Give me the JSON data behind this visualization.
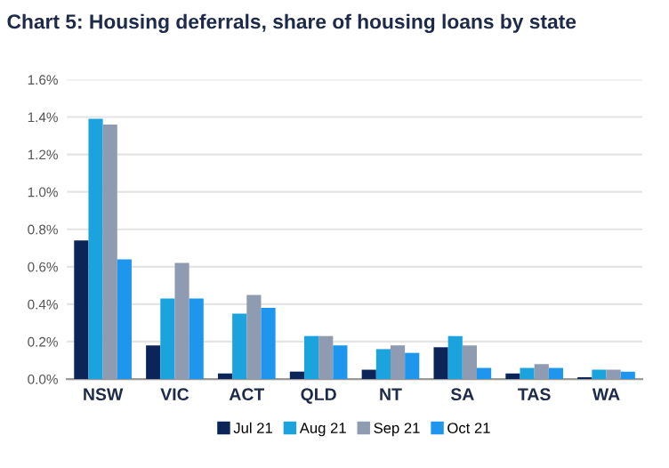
{
  "chart_data": {
    "type": "bar",
    "title": "Chart 5: Housing deferrals, share of housing loans by state",
    "categories": [
      "NSW",
      "VIC",
      "ACT",
      "QLD",
      "NT",
      "SA",
      "TAS",
      "WA"
    ],
    "series": [
      {
        "name": "Jul 21",
        "color": "#0b2559",
        "values": [
          0.74,
          0.18,
          0.03,
          0.04,
          0.05,
          0.17,
          0.03,
          0.01
        ]
      },
      {
        "name": "Aug 21",
        "color": "#1aa3dc",
        "values": [
          1.39,
          0.43,
          0.35,
          0.23,
          0.16,
          0.23,
          0.06,
          0.05
        ]
      },
      {
        "name": "Sep 21",
        "color": "#8e9bb0",
        "values": [
          1.36,
          0.62,
          0.45,
          0.23,
          0.18,
          0.18,
          0.08,
          0.05
        ]
      },
      {
        "name": "Oct 21",
        "color": "#1f96ee",
        "values": [
          0.64,
          0.43,
          0.38,
          0.18,
          0.14,
          0.06,
          0.06,
          0.04
        ]
      }
    ],
    "ylim": [
      0,
      1.6
    ],
    "yticks": [
      {
        "value": 0,
        "label": "0.0%"
      },
      {
        "value": 0.2,
        "label": "0.2%"
      },
      {
        "value": 0.4,
        "label": "0.4%"
      },
      {
        "value": 0.6,
        "label": "0.6%"
      },
      {
        "value": 0.8,
        "label": "0.8%"
      },
      {
        "value": 1.0,
        "label": "1.0%"
      },
      {
        "value": 1.2,
        "label": "1.2%"
      },
      {
        "value": 1.4,
        "label": "1.4%"
      },
      {
        "value": 1.6,
        "label": "1.6%"
      }
    ],
    "grid": "y",
    "legend": "bottom"
  }
}
